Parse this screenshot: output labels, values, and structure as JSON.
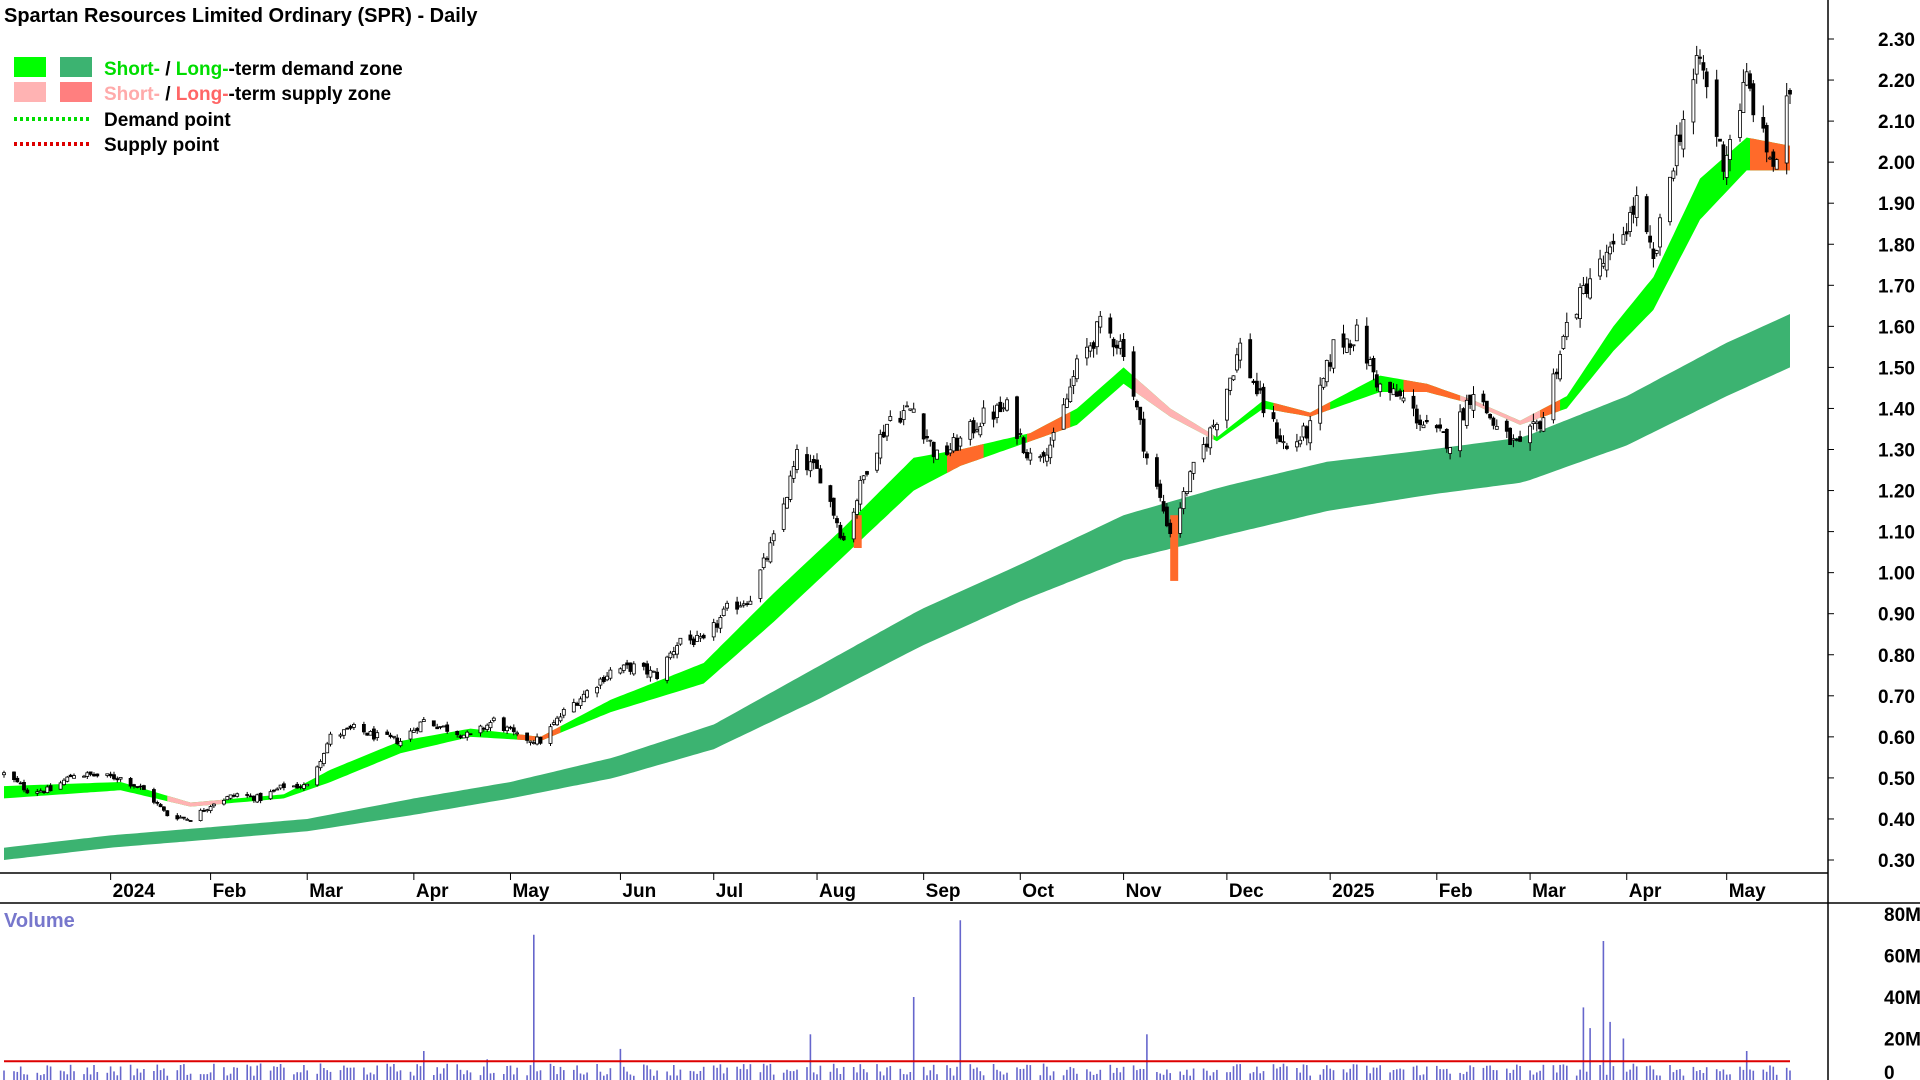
{
  "chart_data": {
    "type": "candlestick",
    "title": "Spartan Resources Limited Ordinary (SPR) - Daily",
    "legend": {
      "demand": {
        "short": "Short-",
        "sep": " / ",
        "long": "Long-",
        "rest": "-term demand zone"
      },
      "supply": {
        "short": "Short-",
        "sep": " / ",
        "long": "Long-",
        "rest": "-term supply zone"
      },
      "demand_point": "Demand point",
      "supply_point": "Supply point",
      "placement": "top-left"
    },
    "colors": {
      "short_demand": "#00ff00",
      "long_demand": "#3cb371",
      "short_supply": "#ffb3b3",
      "long_supply": "#ff7f50",
      "supply_fill": "#ff6a2a",
      "demand_point": "#00dd00",
      "supply_point": "#dd0000",
      "volume_bar": "#6666cc",
      "volume_ma": "#dd0000",
      "volume_label": "#7777cc"
    },
    "x_axis": {
      "labels": [
        "2024",
        "Feb",
        "Mar",
        "Apr",
        "May",
        "Jun",
        "Jul",
        "Aug",
        "Sep",
        "Oct",
        "Nov",
        "Dec",
        "2025",
        "Feb",
        "Mar",
        "Apr",
        "May"
      ],
      "label_dates": [
        "2024-01-02",
        "2024-02-01",
        "2024-03-01",
        "2024-04-02",
        "2024-05-01",
        "2024-06-03",
        "2024-07-01",
        "2024-08-01",
        "2024-09-02",
        "2024-10-01",
        "2024-11-01",
        "2024-12-02",
        "2025-01-02",
        "2025-02-03",
        "2025-03-03",
        "2025-04-01",
        "2025-05-01"
      ],
      "start": "2023-12-01",
      "end": "2025-05-20"
    },
    "price_axis": {
      "ticks": [
        "0.30",
        "0.40",
        "0.50",
        "0.60",
        "0.70",
        "0.80",
        "0.90",
        "1.00",
        "1.10",
        "1.20",
        "1.30",
        "1.40",
        "1.50",
        "1.60",
        "1.70",
        "1.80",
        "1.90",
        "2.00",
        "2.10",
        "2.20",
        "2.30"
      ],
      "ylim": [
        0.26,
        2.35
      ]
    },
    "close_anchors": [
      [
        "2023-12-01",
        0.51
      ],
      [
        "2023-12-08",
        0.47
      ],
      [
        "2023-12-15",
        0.47
      ],
      [
        "2023-12-22",
        0.51
      ],
      [
        "2024-01-05",
        0.5
      ],
      [
        "2024-01-12",
        0.47
      ],
      [
        "2024-01-19",
        0.41
      ],
      [
        "2024-01-26",
        0.4
      ],
      [
        "2024-02-02",
        0.44
      ],
      [
        "2024-02-09",
        0.46
      ],
      [
        "2024-02-16",
        0.45
      ],
      [
        "2024-02-23",
        0.48
      ],
      [
        "2024-03-01",
        0.48
      ],
      [
        "2024-03-08",
        0.6
      ],
      [
        "2024-03-15",
        0.62
      ],
      [
        "2024-03-22",
        0.6
      ],
      [
        "2024-03-29",
        0.59
      ],
      [
        "2024-04-05",
        0.64
      ],
      [
        "2024-04-12",
        0.62
      ],
      [
        "2024-04-19",
        0.6
      ],
      [
        "2024-04-26",
        0.64
      ],
      [
        "2024-05-03",
        0.6
      ],
      [
        "2024-05-10",
        0.59
      ],
      [
        "2024-05-17",
        0.66
      ],
      [
        "2024-05-24",
        0.71
      ],
      [
        "2024-05-31",
        0.76
      ],
      [
        "2024-06-07",
        0.77
      ],
      [
        "2024-06-14",
        0.75
      ],
      [
        "2024-06-21",
        0.84
      ],
      [
        "2024-06-28",
        0.83
      ],
      [
        "2024-07-05",
        0.91
      ],
      [
        "2024-07-12",
        0.94
      ],
      [
        "2024-07-19",
        1.08
      ],
      [
        "2024-07-26",
        1.28
      ],
      [
        "2024-08-02",
        1.24
      ],
      [
        "2024-08-09",
        1.08
      ],
      [
        "2024-08-16",
        1.26
      ],
      [
        "2024-08-23",
        1.38
      ],
      [
        "2024-08-30",
        1.4
      ],
      [
        "2024-09-06",
        1.28
      ],
      [
        "2024-09-13",
        1.32
      ],
      [
        "2024-09-20",
        1.38
      ],
      [
        "2024-09-27",
        1.4
      ],
      [
        "2024-10-04",
        1.28
      ],
      [
        "2024-10-11",
        1.32
      ],
      [
        "2024-10-18",
        1.5
      ],
      [
        "2024-10-25",
        1.6
      ],
      [
        "2024-11-01",
        1.55
      ],
      [
        "2024-11-08",
        1.28
      ],
      [
        "2024-11-15",
        1.1
      ],
      [
        "2024-11-22",
        1.25
      ],
      [
        "2024-11-29",
        1.38
      ],
      [
        "2024-12-06",
        1.55
      ],
      [
        "2024-12-13",
        1.4
      ],
      [
        "2024-12-20",
        1.3
      ],
      [
        "2024-12-27",
        1.35
      ],
      [
        "2025-01-03",
        1.55
      ],
      [
        "2025-01-10",
        1.58
      ],
      [
        "2025-01-17",
        1.45
      ],
      [
        "2025-01-24",
        1.42
      ],
      [
        "2025-01-31",
        1.35
      ],
      [
        "2025-02-07",
        1.32
      ],
      [
        "2025-02-14",
        1.45
      ],
      [
        "2025-02-21",
        1.35
      ],
      [
        "2025-02-28",
        1.3
      ],
      [
        "2025-03-07",
        1.38
      ],
      [
        "2025-03-14",
        1.6
      ],
      [
        "2025-03-21",
        1.72
      ],
      [
        "2025-03-28",
        1.78
      ],
      [
        "2025-04-04",
        1.9
      ],
      [
        "2025-04-09",
        1.75
      ],
      [
        "2025-04-16",
        2.05
      ],
      [
        "2025-04-23",
        2.25
      ],
      [
        "2025-04-30",
        2.0
      ],
      [
        "2025-05-07",
        2.2
      ],
      [
        "2025-05-12",
        2.05
      ],
      [
        "2025-05-16",
        1.98
      ],
      [
        "2025-05-20",
        2.18
      ]
    ],
    "short_zone": [
      [
        "2023-12-01",
        0.48,
        0.45
      ],
      [
        "2024-01-05",
        0.49,
        0.47
      ],
      [
        "2024-01-26",
        0.44,
        0.43
      ],
      [
        "2024-02-23",
        0.46,
        0.45
      ],
      [
        "2024-03-08",
        0.52,
        0.49
      ],
      [
        "2024-03-29",
        0.59,
        0.56
      ],
      [
        "2024-04-19",
        0.62,
        0.6
      ],
      [
        "2024-05-10",
        0.6,
        0.59
      ],
      [
        "2024-05-31",
        0.69,
        0.66
      ],
      [
        "2024-06-28",
        0.78,
        0.73
      ],
      [
        "2024-07-19",
        0.95,
        0.88
      ],
      [
        "2024-08-09",
        1.11,
        1.04
      ],
      [
        "2024-08-30",
        1.28,
        1.2
      ],
      [
        "2024-09-13",
        1.3,
        1.26
      ],
      [
        "2024-10-04",
        1.34,
        1.32
      ],
      [
        "2024-10-18",
        1.4,
        1.36
      ],
      [
        "2024-11-01",
        1.5,
        1.46
      ],
      [
        "2024-11-15",
        1.4,
        1.38
      ],
      [
        "2024-11-29",
        1.33,
        1.32
      ],
      [
        "2024-12-13",
        1.42,
        1.4
      ],
      [
        "2024-12-27",
        1.39,
        1.38
      ],
      [
        "2025-01-17",
        1.48,
        1.44
      ],
      [
        "2025-01-31",
        1.46,
        1.44
      ],
      [
        "2025-02-14",
        1.42,
        1.41
      ],
      [
        "2025-02-28",
        1.37,
        1.36
      ],
      [
        "2025-03-14",
        1.43,
        1.4
      ],
      [
        "2025-03-28",
        1.6,
        1.54
      ],
      [
        "2025-04-09",
        1.72,
        1.64
      ],
      [
        "2025-04-23",
        1.96,
        1.86
      ],
      [
        "2025-05-07",
        2.06,
        1.98
      ],
      [
        "2025-05-20",
        2.04,
        1.98
      ]
    ],
    "long_zone": [
      [
        "2023-12-01",
        0.33,
        0.3
      ],
      [
        "2024-01-02",
        0.36,
        0.33
      ],
      [
        "2024-02-01",
        0.38,
        0.35
      ],
      [
        "2024-03-01",
        0.4,
        0.37
      ],
      [
        "2024-04-02",
        0.45,
        0.41
      ],
      [
        "2024-05-01",
        0.49,
        0.45
      ],
      [
        "2024-06-01",
        0.55,
        0.5
      ],
      [
        "2024-07-01",
        0.63,
        0.57
      ],
      [
        "2024-08-01",
        0.77,
        0.69
      ],
      [
        "2024-09-01",
        0.91,
        0.82
      ],
      [
        "2024-10-01",
        1.02,
        0.93
      ],
      [
        "2024-11-01",
        1.14,
        1.03
      ],
      [
        "2024-12-01",
        1.21,
        1.09
      ],
      [
        "2025-01-01",
        1.27,
        1.15
      ],
      [
        "2025-02-01",
        1.3,
        1.19
      ],
      [
        "2025-03-01",
        1.33,
        1.22
      ],
      [
        "2025-04-01",
        1.43,
        1.31
      ],
      [
        "2025-05-01",
        1.56,
        1.43
      ],
      [
        "2025-05-20",
        1.63,
        1.5
      ]
    ],
    "volume_axis": {
      "title": "Volume",
      "ticks": [
        "0",
        "20M",
        "40M",
        "60M",
        "80M"
      ],
      "ylim": [
        0,
        80
      ]
    },
    "volume_spikes": [
      [
        "2024-05-08",
        70
      ],
      [
        "2024-09-13",
        77
      ],
      [
        "2024-08-30",
        40
      ],
      [
        "2024-07-30",
        22
      ],
      [
        "2024-11-08",
        22
      ],
      [
        "2025-03-25",
        67
      ],
      [
        "2025-03-19",
        35
      ],
      [
        "2025-03-27",
        28
      ],
      [
        "2025-03-21",
        25
      ],
      [
        "2025-03-31",
        20
      ],
      [
        "2024-06-03",
        15
      ],
      [
        "2025-05-07",
        14
      ],
      [
        "2024-04-05",
        14
      ],
      [
        "2024-04-24",
        10
      ]
    ],
    "volume_ma": 9
  }
}
